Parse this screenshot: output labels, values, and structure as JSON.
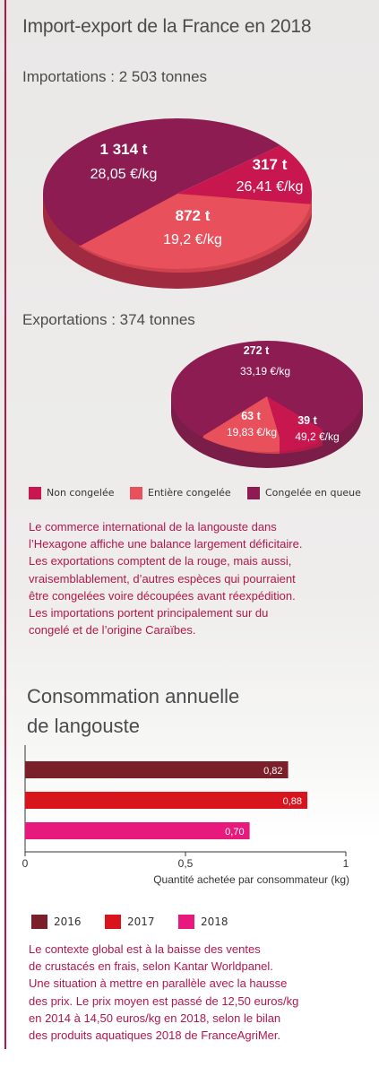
{
  "title": "Import-export de la France en 2018",
  "imports": {
    "heading": "Importations : 2 503 tonnes",
    "slices": [
      {
        "tonnage": "1 314 t",
        "price": "28,05 €/kg",
        "category": "Congelée en queue",
        "value": 1314
      },
      {
        "tonnage": "317 t",
        "price": "26,41 €/kg",
        "category": "Non congelée",
        "value": 317
      },
      {
        "tonnage": "872 t",
        "price": "19,2 €/kg",
        "category": "Entière congelée",
        "value": 872
      }
    ]
  },
  "exports": {
    "heading": "Exportations : 374 tonnes",
    "slices": [
      {
        "tonnage": "272 t",
        "price": "33,19 €/kg",
        "category": "Congelée en queue",
        "value": 272
      },
      {
        "tonnage": "39 t",
        "price": "49,2 €/kg",
        "category": "Non congelée",
        "value": 39
      },
      {
        "tonnage": "63 t",
        "price": "19,83 €/kg",
        "category": "Entière congelée",
        "value": 63
      }
    ]
  },
  "legend": [
    {
      "label": "Non congelée",
      "color": "#c8174f"
    },
    {
      "label": "Entière congelée",
      "color": "#e8505b"
    },
    {
      "label": "Congelée en queue",
      "color": "#8d1c52"
    }
  ],
  "paragraph1": [
    "Le commerce international de la langouste dans",
    "l’Hexagone affiche une balance largement déficitaire.",
    "Les exportations comptent de la rouge, mais aussi,",
    "vraisemblablement, d’autres espèces qui pourraient",
    "être congelées voire découpées avant réexpédition.",
    "Les importations portent principalement sur du",
    "congelé et de l’origine Caraïbes."
  ],
  "consumption_title": [
    "Consommation annuelle",
    "de langouste"
  ],
  "chart_data": [
    {
      "type": "pie",
      "title": "Importations : 2 503 tonnes",
      "categories": [
        "Congelée en queue",
        "Non congelée",
        "Entière congelée"
      ],
      "values": [
        1314,
        317,
        872
      ],
      "labels": [
        "1 314 t",
        "317 t",
        "872 t"
      ],
      "annotations": [
        "28,05 €/kg",
        "26,41 €/kg",
        "19,2 €/kg"
      ],
      "colors": [
        "#8d1c52",
        "#c8174f",
        "#e8505b"
      ]
    },
    {
      "type": "pie",
      "title": "Exportations : 374 tonnes",
      "categories": [
        "Congelée en queue",
        "Non congelée",
        "Entière congelée"
      ],
      "values": [
        272,
        39,
        63
      ],
      "labels": [
        "272 t",
        "39 t",
        "63 t"
      ],
      "annotations": [
        "33,19 €/kg",
        "49,2 €/kg",
        "19,83 €/kg"
      ],
      "colors": [
        "#8d1c52",
        "#c8174f",
        "#e8505b"
      ]
    },
    {
      "type": "bar",
      "orientation": "horizontal",
      "title": "Consommation annuelle de langouste",
      "categories": [
        "2016",
        "2017",
        "2018"
      ],
      "values": [
        0.82,
        0.88,
        0.7
      ],
      "value_labels": [
        "0,82",
        "0,88",
        "0,70"
      ],
      "colors": [
        "#7b1f2a",
        "#d8141c",
        "#e8197d"
      ],
      "xlabel": "Quantité achetée par consommateur (kg)",
      "xlim": [
        0,
        1
      ],
      "xticks": [
        0,
        0.5,
        1
      ],
      "xtick_labels": [
        "0",
        "0,5",
        "1"
      ],
      "grid": false,
      "legend_position": "bottom"
    }
  ],
  "paragraph2": [
    "Le contexte global est à la baisse des ventes",
    "de crustacés en frais, selon Kantar Worldpanel.",
    "Une situation à mettre en parallèle avec la hausse",
    "des prix. Le prix moyen est passé de 12,50 euros/kg",
    "en 2014 à 14,50 euros/kg en 2018, selon le bilan",
    "des produits aquatiques 2018 de FranceAgriMer."
  ]
}
